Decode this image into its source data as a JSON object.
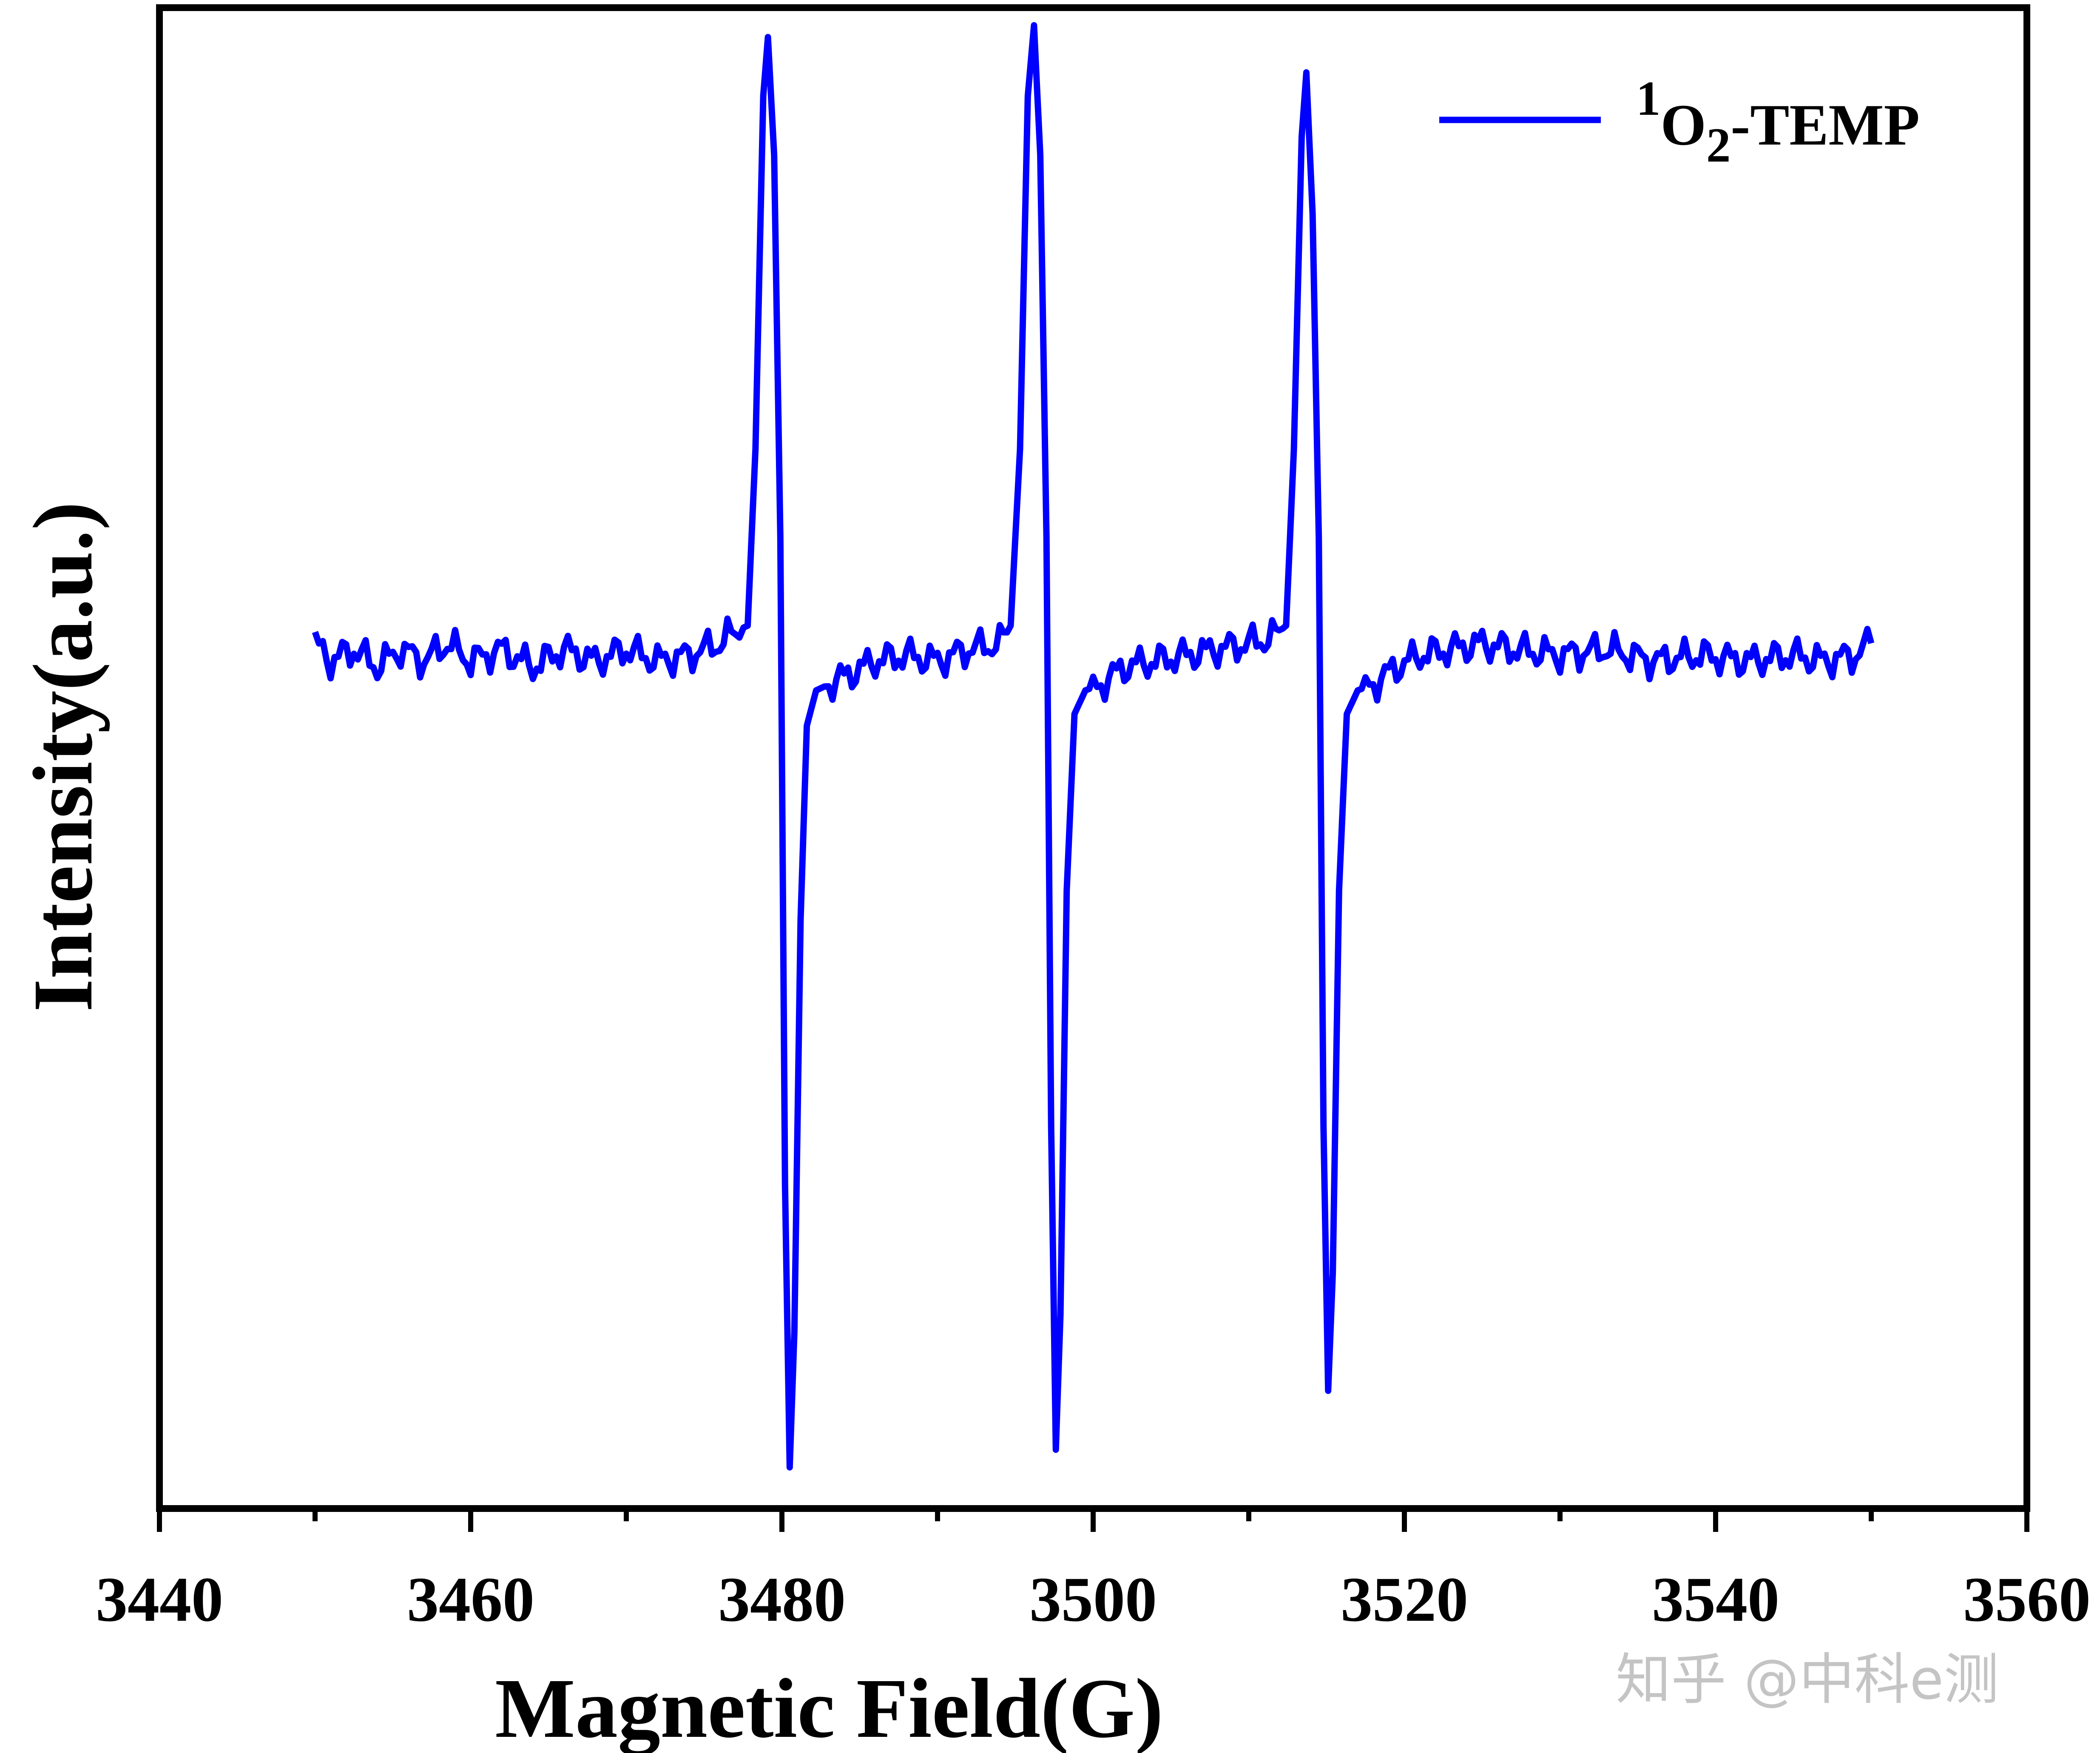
{
  "chart_data": {
    "type": "line",
    "title": "",
    "xlabel": "Magnetic Field(G)",
    "ylabel": "Intensity(a.u.)",
    "xlim": [
      3440,
      3560
    ],
    "ylim": [
      -1.45,
      1.1
    ],
    "xticks": [
      3440,
      3460,
      3480,
      3500,
      3520,
      3540,
      3560
    ],
    "x_minor_step": 10,
    "y_tick_labels": "none",
    "grid": false,
    "legend_position": "top-right",
    "series": [
      {
        "name": "1O2-TEMP",
        "legend_label": {
          "superscript": "1",
          "base": "O",
          "subscript": "2",
          "suffix": "-TEMP"
        },
        "color": "#0000ff",
        "x_range": [
          3450,
          3550
        ],
        "points": [
          [
            3450.0,
            0.02
          ],
          [
            3451.0,
            -0.01
          ],
          [
            3452.5,
            0.01
          ],
          [
            3454.0,
            -0.02
          ],
          [
            3455.5,
            0.01
          ],
          [
            3457.0,
            -0.01
          ],
          [
            3458.5,
            0.02
          ],
          [
            3460.0,
            -0.01
          ],
          [
            3462.0,
            0.01
          ],
          [
            3464.0,
            -0.02
          ],
          [
            3466.0,
            0.01
          ],
          [
            3468.0,
            -0.01
          ],
          [
            3470.0,
            0.01
          ],
          [
            3472.0,
            -0.01
          ],
          [
            3474.0,
            0.0
          ],
          [
            3476.0,
            0.02
          ],
          [
            3477.0,
            0.04
          ],
          [
            3477.8,
            0.05
          ],
          [
            3478.3,
            0.35
          ],
          [
            3478.8,
            0.95
          ],
          [
            3479.1,
            1.05
          ],
          [
            3479.5,
            0.85
          ],
          [
            3479.9,
            0.2
          ],
          [
            3480.2,
            -0.9
          ],
          [
            3480.5,
            -1.38
          ],
          [
            3480.8,
            -1.15
          ],
          [
            3481.2,
            -0.45
          ],
          [
            3481.6,
            -0.12
          ],
          [
            3482.2,
            -0.06
          ],
          [
            3483.0,
            -0.05
          ],
          [
            3484.5,
            -0.03
          ],
          [
            3486.0,
            -0.01
          ],
          [
            3488.0,
            0.0
          ],
          [
            3490.0,
            -0.01
          ],
          [
            3492.0,
            0.01
          ],
          [
            3494.0,
            0.02
          ],
          [
            3494.7,
            0.05
          ],
          [
            3495.3,
            0.35
          ],
          [
            3495.8,
            0.95
          ],
          [
            3496.2,
            1.07
          ],
          [
            3496.6,
            0.85
          ],
          [
            3497.0,
            0.2
          ],
          [
            3497.3,
            -0.8
          ],
          [
            3497.6,
            -1.35
          ],
          [
            3497.9,
            -1.12
          ],
          [
            3498.3,
            -0.4
          ],
          [
            3498.8,
            -0.1
          ],
          [
            3499.5,
            -0.06
          ],
          [
            3500.5,
            -0.05
          ],
          [
            3502.0,
            -0.02
          ],
          [
            3504.0,
            -0.01
          ],
          [
            3506.0,
            0.0
          ],
          [
            3508.0,
            0.01
          ],
          [
            3510.0,
            0.02
          ],
          [
            3511.5,
            0.03
          ],
          [
            3512.4,
            0.05
          ],
          [
            3512.9,
            0.35
          ],
          [
            3513.4,
            0.88
          ],
          [
            3513.7,
            0.99
          ],
          [
            3514.1,
            0.75
          ],
          [
            3514.5,
            0.2
          ],
          [
            3514.8,
            -0.8
          ],
          [
            3515.1,
            -1.25
          ],
          [
            3515.4,
            -1.05
          ],
          [
            3515.8,
            -0.4
          ],
          [
            3516.3,
            -0.1
          ],
          [
            3517.0,
            -0.06
          ],
          [
            3518.0,
            -0.05
          ],
          [
            3519.5,
            -0.02
          ],
          [
            3521.0,
            0.0
          ],
          [
            3523.0,
            0.01
          ],
          [
            3525.0,
            0.02
          ],
          [
            3527.0,
            0.01
          ],
          [
            3530.0,
            0.0
          ],
          [
            3533.0,
            0.01
          ],
          [
            3536.0,
            -0.01
          ],
          [
            3539.0,
            0.0
          ],
          [
            3542.0,
            -0.01
          ],
          [
            3545.0,
            0.0
          ],
          [
            3547.0,
            -0.01
          ],
          [
            3549.0,
            0.0
          ],
          [
            3550.0,
            0.02
          ]
        ]
      }
    ]
  },
  "watermark": "知乎 @中科e测"
}
